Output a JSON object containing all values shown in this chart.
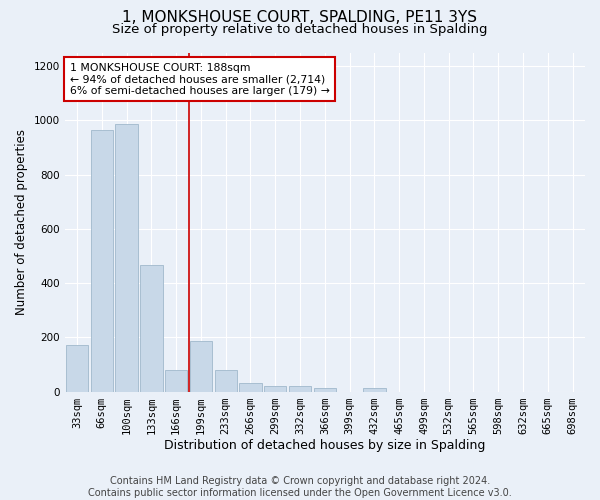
{
  "title": "1, MONKSHOUSE COURT, SPALDING, PE11 3YS",
  "subtitle": "Size of property relative to detached houses in Spalding",
  "xlabel": "Distribution of detached houses by size in Spalding",
  "ylabel": "Number of detached properties",
  "footer_line1": "Contains HM Land Registry data © Crown copyright and database right 2024.",
  "footer_line2": "Contains public sector information licensed under the Open Government Licence v3.0.",
  "bar_labels": [
    "33sqm",
    "66sqm",
    "100sqm",
    "133sqm",
    "166sqm",
    "199sqm",
    "233sqm",
    "266sqm",
    "299sqm",
    "332sqm",
    "366sqm",
    "399sqm",
    "432sqm",
    "465sqm",
    "499sqm",
    "532sqm",
    "565sqm",
    "598sqm",
    "632sqm",
    "665sqm",
    "698sqm"
  ],
  "bar_values": [
    170,
    965,
    985,
    465,
    80,
    185,
    80,
    30,
    20,
    20,
    12,
    0,
    12,
    0,
    0,
    0,
    0,
    0,
    0,
    0,
    0
  ],
  "bar_color": "#c8d8e8",
  "bar_edge_color": "#a0b8cc",
  "annotation_box_text": "1 MONKSHOUSE COURT: 188sqm\n← 94% of detached houses are smaller (2,714)\n6% of semi-detached houses are larger (179) →",
  "property_line_x": 4.5,
  "ylim": [
    0,
    1250
  ],
  "yticks": [
    0,
    200,
    400,
    600,
    800,
    1000,
    1200
  ],
  "bg_color": "#eaf0f8",
  "plot_bg_color": "#eaf0f8",
  "grid_color": "#ffffff",
  "annotation_box_color": "#cc0000",
  "property_line_color": "#cc0000",
  "title_fontsize": 11,
  "subtitle_fontsize": 9.5,
  "xlabel_fontsize": 9,
  "ylabel_fontsize": 8.5,
  "tick_fontsize": 7.5,
  "footer_fontsize": 7
}
